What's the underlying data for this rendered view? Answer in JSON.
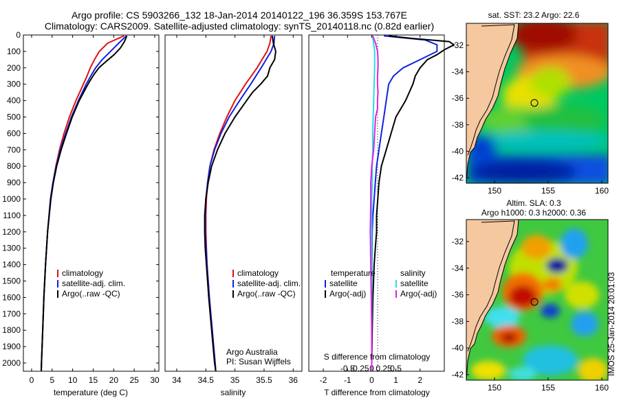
{
  "titles": {
    "line1": "Argo profile: CS 5903266_132 18-Jan-2014 20140122_196 36.359S 153.767E",
    "line2": "Climatology: CARS2009. Satellite-adjusted climatology: synTS_20140118.nc (0.82d earlier)"
  },
  "colors": {
    "climatology": "#e01010",
    "satellite": "#1020e0",
    "argo": "#000000",
    "sat_salinity": "#20e0e8",
    "argo_salinity": "#e020e0",
    "land": "#f5c8a0"
  },
  "chart_data": [
    {
      "id": "temperature",
      "type": "line",
      "xlabel": "temperature (deg C)",
      "xlim": [
        -2,
        31
      ],
      "ylim": [
        0,
        2050
      ],
      "xticks": [
        0,
        5,
        10,
        15,
        20,
        25,
        30
      ],
      "yticks": [
        0,
        100,
        200,
        300,
        400,
        500,
        600,
        700,
        800,
        900,
        1000,
        1100,
        1200,
        1300,
        1400,
        1500,
        1600,
        1700,
        1800,
        1900,
        2000
      ],
      "legend": [
        "climatology",
        "satellite-adj. clim.",
        "Argo(..raw -QC)"
      ],
      "series": [
        {
          "name": "climatology",
          "color": "#e01010",
          "depth": [
            5,
            50,
            100,
            150,
            200,
            250,
            300,
            400,
            500,
            600,
            700,
            800,
            900,
            1000,
            1200,
            1400,
            1600,
            1800,
            2000,
            2050
          ],
          "values": [
            22.5,
            18.5,
            16.5,
            15.3,
            14.3,
            13.5,
            12.6,
            10.8,
            9.2,
            7.9,
            6.8,
            5.9,
            5.2,
            4.6,
            3.9,
            3.4,
            3.0,
            2.7,
            2.4,
            2.35
          ]
        },
        {
          "name": "satellite-adj. clim.",
          "color": "#1020e0",
          "depth": [
            5,
            50,
            100,
            150,
            200,
            250,
            300,
            400,
            500,
            600,
            700,
            800,
            900,
            1000,
            1200,
            1400,
            1600,
            1800,
            2000,
            2050
          ],
          "values": [
            23.1,
            21.2,
            19.2,
            17.2,
            15.6,
            14.4,
            13.3,
            11.4,
            9.7,
            8.3,
            7.0,
            6.0,
            5.2,
            4.6,
            3.9,
            3.4,
            3.0,
            2.7,
            2.4,
            2.35
          ]
        },
        {
          "name": "Argo(..raw -QC)",
          "color": "#000000",
          "depth": [
            5,
            40,
            80,
            120,
            160,
            200,
            240,
            280,
            320,
            400,
            500,
            600,
            700,
            800,
            900,
            1000,
            1100,
            1200,
            1400,
            1600,
            1800,
            2000,
            2050
          ],
          "values": [
            23.2,
            22.6,
            21.6,
            20.1,
            18.2,
            16.4,
            15.2,
            14.2,
            13.3,
            11.6,
            9.9,
            8.5,
            7.2,
            6.1,
            5.3,
            4.7,
            4.3,
            3.9,
            3.4,
            3.0,
            2.7,
            2.4,
            2.35
          ]
        }
      ]
    },
    {
      "id": "salinity",
      "type": "line",
      "xlabel": "salinity",
      "xlim": [
        33.8,
        36.15
      ],
      "ylim": [
        0,
        2050
      ],
      "xticks": [
        34,
        34.5,
        35,
        35.5,
        36
      ],
      "legend": [
        "climatology",
        "satellite-adj. clim.",
        "Argo(..raw -QC)"
      ],
      "annotation": [
        "Argo Australia",
        "PI: Susan Wijffels"
      ],
      "series": [
        {
          "name": "climatology",
          "color": "#e01010",
          "depth": [
            5,
            50,
            100,
            200,
            300,
            400,
            500,
            600,
            700,
            800,
            900,
            1000,
            1100,
            1200,
            1400,
            1600,
            1800,
            2000,
            2050
          ],
          "values": [
            35.62,
            35.6,
            35.55,
            35.38,
            35.18,
            35.0,
            34.86,
            34.74,
            34.64,
            34.57,
            34.53,
            34.51,
            34.5,
            34.5,
            34.52,
            34.56,
            34.61,
            34.66,
            34.67
          ]
        },
        {
          "name": "satellite-adj. clim.",
          "color": "#1020e0",
          "depth": [
            5,
            50,
            100,
            200,
            300,
            400,
            500,
            600,
            700,
            800,
            900,
            1000,
            1100,
            1200,
            1400,
            1600,
            1800,
            2000,
            2050
          ],
          "values": [
            35.68,
            35.67,
            35.62,
            35.45,
            35.27,
            35.08,
            34.9,
            34.76,
            34.65,
            34.57,
            34.53,
            34.5,
            34.49,
            34.49,
            34.52,
            34.56,
            34.61,
            34.66,
            34.67
          ]
        },
        {
          "name": "Argo(..raw -QC)",
          "color": "#000000",
          "depth": [
            5,
            50,
            100,
            150,
            200,
            250,
            300,
            350,
            400,
            500,
            600,
            700,
            800,
            900,
            1000,
            1100,
            1200,
            1300,
            1400,
            1600,
            1800,
            2000,
            2050
          ],
          "values": [
            35.64,
            35.66,
            35.7,
            35.68,
            35.6,
            35.56,
            35.44,
            35.3,
            35.2,
            35.0,
            34.83,
            34.7,
            34.6,
            34.54,
            34.5,
            34.48,
            34.48,
            34.49,
            34.51,
            34.55,
            34.6,
            34.65,
            34.67
          ]
        }
      ]
    },
    {
      "id": "differences",
      "type": "line",
      "xlabel": "T difference from climatology",
      "xlabel_top": "S difference from climatology",
      "xlim": [
        -2.6,
        3.0
      ],
      "ylim": [
        0,
        2050
      ],
      "xticks": [
        -2,
        -1,
        0,
        1,
        2
      ],
      "xticks_top": [
        -0.5,
        -0.25,
        0,
        0.25,
        0.5
      ],
      "legend_temperature": {
        "title": "temperature",
        "items": [
          "satellite",
          "Argo(-adj)"
        ]
      },
      "legend_salinity": {
        "title": "salinity",
        "items": [
          "satellite",
          "Argo(-adj)"
        ]
      },
      "series": [
        {
          "name": "temperature satellite",
          "color": "#1020e0",
          "depth": [
            5,
            30,
            60,
            100,
            150,
            200,
            250,
            300,
            400,
            500,
            600,
            700,
            800,
            900,
            1000,
            1100,
            1200,
            1400,
            1600,
            1800,
            2000,
            2050
          ],
          "values": [
            0.5,
            2.2,
            2.7,
            2.7,
            2.0,
            1.3,
            0.9,
            0.7,
            0.6,
            0.5,
            0.4,
            0.3,
            0.2,
            0.15,
            0.1,
            0.05,
            0.02,
            0.01,
            0.0,
            0.0,
            0.0,
            0.0
          ]
        },
        {
          "name": "temperature Argo(-adj)",
          "color": "#000000",
          "depth": [
            5,
            20,
            40,
            60,
            90,
            120,
            150,
            200,
            250,
            300,
            400,
            500,
            600,
            700,
            800,
            900,
            1000,
            1100,
            1200,
            1300,
            1400,
            1600,
            1800,
            2000,
            2050
          ],
          "values": [
            0.7,
            1.6,
            3.2,
            3.4,
            3.0,
            2.7,
            2.3,
            2.0,
            1.8,
            1.7,
            1.4,
            1.0,
            0.8,
            0.6,
            0.4,
            0.3,
            0.25,
            0.2,
            0.2,
            0.15,
            0.1,
            0.05,
            0.02,
            0.0,
            0.0
          ]
        },
        {
          "name": "salinity satellite",
          "color": "#20e0e8",
          "depth": [
            5,
            100,
            200,
            300,
            400,
            500,
            600,
            700,
            800,
            900,
            1000,
            1200,
            1400,
            1600,
            1800,
            2000,
            2050
          ],
          "values": [
            0.02,
            0.06,
            0.06,
            0.05,
            0.04,
            0.03,
            0.02,
            0.02,
            0.01,
            0.01,
            0.0,
            0.0,
            0.0,
            0.0,
            0.0,
            0.0,
            0.0
          ]
        },
        {
          "name": "salinity Argo(-adj)",
          "color": "#e020e0",
          "depth": [
            5,
            50,
            100,
            150,
            200,
            250,
            300,
            350,
            400,
            450,
            500,
            600,
            700,
            800,
            900,
            1000,
            1200,
            1400,
            1600,
            1800,
            2000,
            2050
          ],
          "values": [
            0.02,
            0.08,
            0.12,
            0.13,
            0.13,
            0.12,
            0.12,
            0.13,
            0.12,
            0.12,
            0.08,
            0.06,
            0.04,
            0.0,
            -0.02,
            -0.02,
            -0.03,
            -0.02,
            -0.01,
            0.0,
            0.0,
            0.0
          ]
        }
      ]
    }
  ],
  "maps": {
    "sst": {
      "title": "sat. SST: 23.2  Argo: 22.6",
      "lat_ticks": [
        "-32",
        "-34",
        "-36",
        "-38",
        "-40",
        "-42"
      ],
      "lon_ticks": [
        "150",
        "155",
        "160"
      ]
    },
    "sla": {
      "title_line1": "Altim. SLA: 0.3",
      "title_line2": "Argo h1000: 0.3  h2000: 0.36",
      "lat_ticks": [
        "-32",
        "-34",
        "-36",
        "-38",
        "-40",
        "-42"
      ],
      "lon_ticks": [
        "150",
        "155",
        "160"
      ]
    },
    "float_position": {
      "lat": -36.359,
      "lon": 153.767
    }
  },
  "footer": {
    "credit": "IMOS 25-Jan-2014 20:01:03"
  }
}
